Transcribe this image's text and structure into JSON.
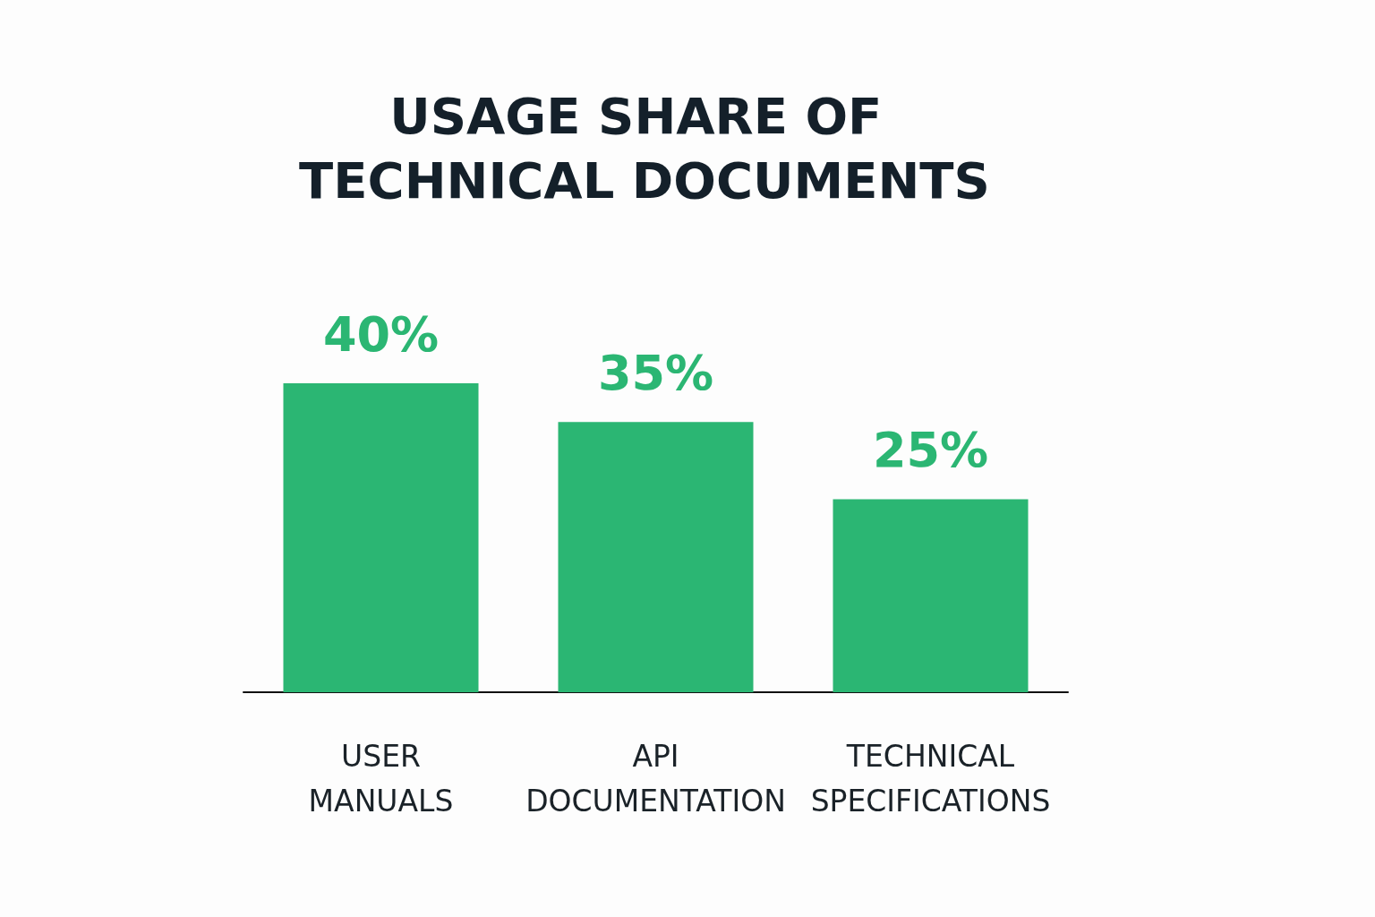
{
  "chart_data": {
    "type": "bar",
    "title": "USAGE SHARE OF TECHNICAL DOCUMENTS",
    "categories": [
      "USER MANUALS",
      "API DOCUMENTATION",
      "TECHNICAL SPECIFICATIONS"
    ],
    "values": [
      40,
      35,
      25
    ],
    "value_labels": [
      "40%",
      "35%",
      "25%"
    ],
    "color": "#2bb673",
    "grid": false
  }
}
